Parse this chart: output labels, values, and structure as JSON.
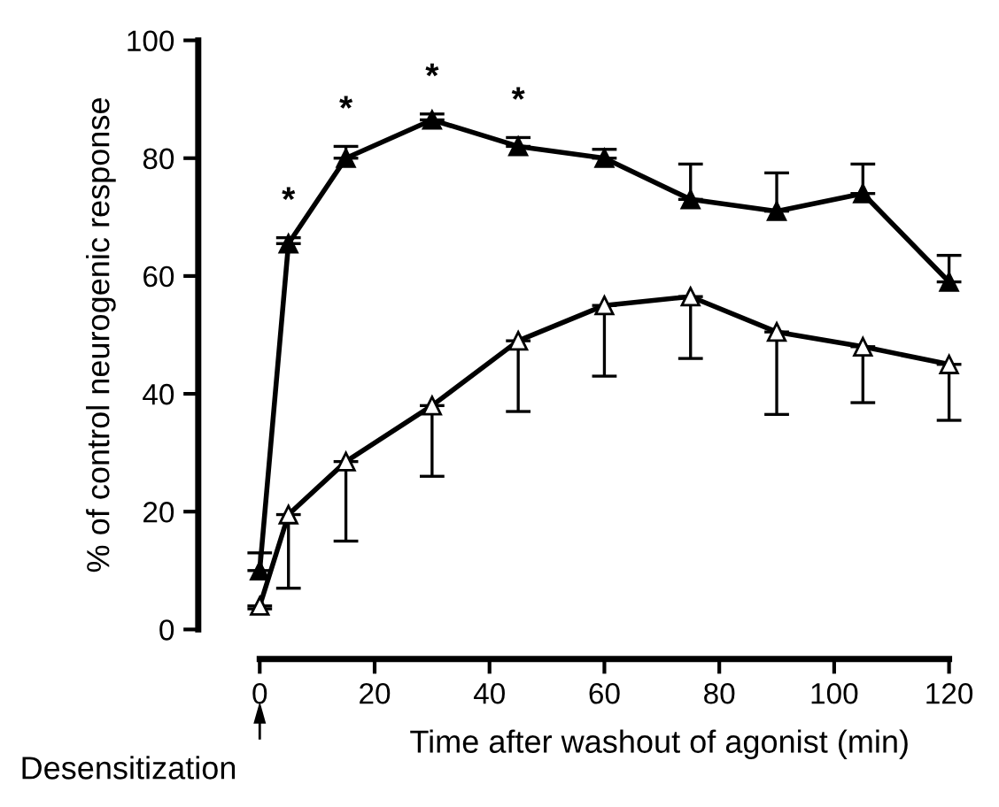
{
  "chart_data": {
    "type": "line",
    "xlabel": "Time after washout of agonist (min)",
    "ylabel": "% of control neurogenic response",
    "x": [
      0,
      5,
      15,
      30,
      45,
      60,
      75,
      90,
      105,
      120
    ],
    "series": [
      {
        "color": "#000000",
        "values": [
          10,
          65.5,
          80,
          86.5,
          82,
          80,
          73,
          71,
          74,
          59
        ],
        "errors": [
          [
            10,
            13
          ],
          [
            65.5,
            66.5
          ],
          [
            80,
            82
          ],
          [
            86.5,
            87.5
          ],
          [
            82,
            83.5
          ],
          [
            80,
            81.5
          ],
          [
            73,
            79
          ],
          [
            71,
            77.5
          ],
          [
            74,
            79
          ],
          [
            59,
            63.5
          ]
        ]
      },
      {
        "color": "#000000",
        "values": [
          4,
          19.5,
          28.5,
          38,
          49,
          55,
          56.5,
          50.5,
          48,
          45
        ],
        "errors": [
          [
            3.5,
            4
          ],
          [
            7,
            19.5
          ],
          [
            15,
            28.5
          ],
          [
            26,
            38
          ],
          [
            37,
            49
          ],
          [
            43,
            55
          ],
          [
            46,
            56.5
          ],
          [
            36.5,
            50.5
          ],
          [
            38.5,
            48
          ],
          [
            35.5,
            45
          ]
        ]
      }
    ],
    "marker": "triangle",
    "line_style": "solid",
    "xlim": [
      0,
      120
    ],
    "xticks": [
      0,
      20,
      40,
      60,
      80,
      100,
      120
    ],
    "ylim": [
      0,
      100
    ],
    "yticks": [
      0,
      20,
      40,
      60,
      80,
      100
    ],
    "grid": false,
    "legend": false,
    "annotations": [
      "*",
      "*",
      "*",
      "*",
      "Desensitization"
    ]
  }
}
